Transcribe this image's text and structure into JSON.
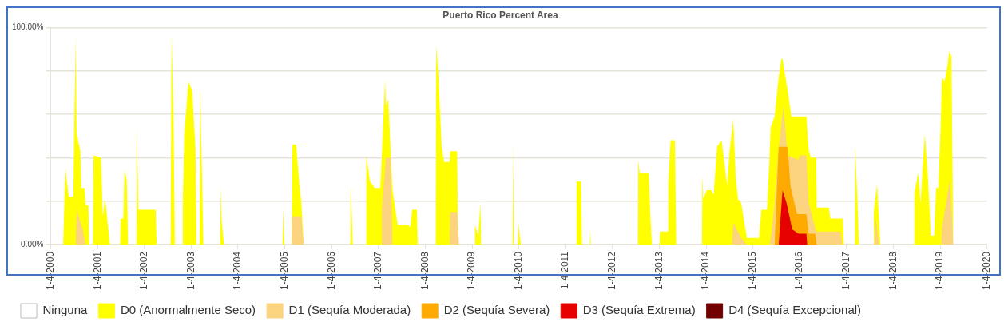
{
  "chart_data": {
    "type": "area",
    "title": "Puerto Rico Percent Area",
    "xlim": [
      "2000-01-04",
      "2020-01-04"
    ],
    "xticks": [
      {
        "value": "2000-01-04",
        "label": "1-4-2000"
      },
      {
        "value": "2001-01-04",
        "label": "1-4-2001"
      },
      {
        "value": "2002-01-04",
        "label": "1-4-2002"
      },
      {
        "value": "2003-01-04",
        "label": "1-4-2003"
      },
      {
        "value": "2004-01-04",
        "label": "1-4-2004"
      },
      {
        "value": "2005-01-04",
        "label": "1-4-2005"
      },
      {
        "value": "2006-01-04",
        "label": "1-4-2006"
      },
      {
        "value": "2007-01-04",
        "label": "1-4-2007"
      },
      {
        "value": "2008-01-04",
        "label": "1-4-2008"
      },
      {
        "value": "2009-01-04",
        "label": "1-4-2009"
      },
      {
        "value": "2010-01-04",
        "label": "1-4-2010"
      },
      {
        "value": "2011-01-04",
        "label": "1-4-2011"
      },
      {
        "value": "2012-01-04",
        "label": "1-4-2012"
      },
      {
        "value": "2013-01-04",
        "label": "1-4-2013"
      },
      {
        "value": "2014-01-04",
        "label": "1-4-2014"
      },
      {
        "value": "2015-01-04",
        "label": "1-4-2015"
      },
      {
        "value": "2016-01-04",
        "label": "1-4-2016"
      },
      {
        "value": "2017-01-04",
        "label": "1-4-2017"
      },
      {
        "value": "2018-01-04",
        "label": "1-4-2018"
      },
      {
        "value": "2019-01-04",
        "label": "1-4-2019"
      },
      {
        "value": "2020-01-04",
        "label": "1-4-2020"
      }
    ],
    "ylim": [
      0,
      100
    ],
    "yticks": [
      {
        "value": 0,
        "label": "0.00%"
      },
      {
        "value": 20,
        "label": null
      },
      {
        "value": 40,
        "label": null
      },
      {
        "value": 60,
        "label": null
      },
      {
        "value": 80,
        "label": null
      },
      {
        "value": 100,
        "label": "100.00%"
      }
    ],
    "grid": "y",
    "legend": "bottom",
    "series": [
      {
        "name": "Ninguna",
        "color": "#ffffff"
      },
      {
        "name": "D0 (Anormalmente Seco)",
        "color": "#ffff00",
        "x": [
          "2000-04-10",
          "2000-04-28",
          "2000-05-23",
          "2000-06-29",
          "2000-07-06",
          "2000-07-17",
          "2000-07-24",
          "2000-08-23",
          "2000-08-30",
          "2000-09-24",
          "2000-10-02",
          "2000-10-24",
          "2000-10-31",
          "2000-11-29",
          "2000-12-03",
          "2001-01-30",
          "2001-02-14",
          "2001-03-04",
          "2001-04-10",
          "2001-06-29",
          "2001-07-03",
          "2001-07-24",
          "2001-08-01",
          "2001-08-19",
          "2001-08-30",
          "2001-11-04",
          "2001-11-07",
          "2001-11-18",
          "2002-04-02",
          "2002-04-10",
          "2002-07-28",
          "2002-08-04",
          "2002-08-19",
          "2002-08-30",
          "2002-10-27",
          "2002-10-31",
          "2002-11-11",
          "2002-12-14",
          "2003-01-12",
          "2003-02-07",
          "2003-02-14",
          "2003-03-11",
          "2003-03-15",
          "2003-04-10",
          "2003-08-19",
          "2003-08-23",
          "2003-08-30",
          "2003-09-17",
          "2004-12-17",
          "2004-12-21",
          "2005-01-01",
          "2005-02-28",
          "2005-03-04",
          "2005-04-02",
          "2005-04-24",
          "2005-05-12",
          "2005-05-31",
          "2006-05-31",
          "2006-06-03",
          "2006-06-18",
          "2006-09-28",
          "2006-10-02",
          "2006-10-31",
          "2006-12-06",
          "2007-01-19",
          "2007-01-30",
          "2007-02-25",
          "2007-03-04",
          "2007-03-22",
          "2007-04-24",
          "2007-06-03",
          "2007-08-23",
          "2007-09-10",
          "2007-09-24",
          "2007-10-31",
          "2007-11-07",
          "2008-03-26",
          "2008-03-30",
          "2008-04-17",
          "2008-05-12",
          "2008-05-31",
          "2008-07-13",
          "2008-07-17",
          "2008-09-10",
          "2008-09-17",
          "2009-01-23",
          "2009-01-27",
          "2009-02-21",
          "2009-03-11",
          "2009-03-15",
          "2009-11-15",
          "2009-11-18",
          "2009-11-26",
          "2009-12-28",
          "2010-01-01",
          "2010-01-19",
          "2011-03-26",
          "2011-03-30",
          "2011-05-05",
          "2011-05-12",
          "2011-07-10",
          "2011-07-13",
          "2011-07-21",
          "2012-07-21",
          "2012-07-24",
          "2012-08-04",
          "2012-10-13",
          "2012-10-24",
          "2012-11-07",
          "2013-01-05",
          "2013-01-08",
          "2013-03-11",
          "2013-03-15",
          "2013-04-02",
          "2013-05-05",
          "2013-05-16",
          "2013-12-03",
          "2013-12-06",
          "2013-12-14",
          "2014-01-08",
          "2014-02-14",
          "2014-03-04",
          "2014-03-30",
          "2014-05-05",
          "2014-05-23",
          "2014-06-18",
          "2014-07-06",
          "2014-08-04",
          "2014-08-23",
          "2014-09-10",
          "2014-10-05",
          "2014-11-18",
          "2015-02-21",
          "2015-03-11",
          "2015-04-24",
          "2015-05-12",
          "2015-05-23",
          "2015-06-22",
          "2015-07-24",
          "2015-08-12",
          "2015-08-23",
          "2015-09-10",
          "2015-10-02",
          "2015-10-31",
          "2016-02-25",
          "2016-03-15",
          "2016-04-02",
          "2016-05-12",
          "2016-05-16",
          "2016-08-19",
          "2016-08-30",
          "2016-12-06",
          "2016-12-14",
          "2017-03-08",
          "2017-03-11",
          "2017-03-30",
          "2017-04-10",
          "2017-08-01",
          "2017-08-04",
          "2017-08-30",
          "2017-09-24",
          "2018-06-14",
          "2018-06-18",
          "2018-07-17",
          "2018-08-04",
          "2018-09-06",
          "2018-10-02",
          "2018-10-24",
          "2018-11-18",
          "2018-12-03",
          "2018-12-21",
          "2019-01-08",
          "2019-01-19",
          "2019-02-07",
          "2019-03-04",
          "2019-03-15",
          "2019-04-02",
          "2019-04-17"
        ],
        "values": [
          0,
          35,
          22,
          22,
          55,
          96,
          51,
          43,
          26,
          26,
          18,
          18,
          0,
          0,
          41,
          40,
          13,
          21,
          0,
          0,
          12,
          12,
          34,
          30,
          0,
          0,
          54,
          16,
          16,
          0,
          0,
          97,
          60,
          0,
          0,
          20,
          51,
          75,
          71,
          44,
          0,
          0,
          74,
          0,
          0,
          27,
          11,
          0,
          0,
          17,
          0,
          0,
          46,
          46,
          30,
          20,
          0,
          0,
          28,
          0,
          0,
          41,
          29,
          26,
          26,
          40,
          76,
          64,
          67,
          25,
          9,
          9,
          8,
          16,
          16,
          0,
          0,
          92,
          77,
          45,
          38,
          38,
          43,
          43,
          0,
          0,
          9,
          4,
          19,
          0,
          0,
          47,
          0,
          0,
          10,
          0,
          0,
          29,
          29,
          0,
          0,
          7,
          0,
          0,
          39,
          33,
          33,
          16,
          0,
          0,
          6,
          6,
          28,
          48,
          48,
          0,
          0,
          32,
          21,
          25,
          25,
          23,
          45,
          48,
          39,
          27,
          43,
          58,
          31,
          21,
          19,
          3,
          3,
          16,
          16,
          38,
          54,
          59,
          77,
          85,
          86,
          79,
          71,
          59,
          59,
          43,
          40,
          40,
          17,
          17,
          12,
          12,
          0,
          0,
          46,
          20,
          0,
          0,
          15,
          28,
          0,
          0,
          24,
          33,
          19,
          51,
          30,
          4,
          4,
          26,
          26,
          55,
          77,
          75,
          83,
          89,
          87,
          0
        ]
      },
      {
        "name": "D1 (Sequía Moderada)",
        "color": "#fcd37f",
        "x": [
          "2000-07-17",
          "2000-07-24",
          "2000-09-10",
          "2000-10-02",
          "2005-02-28",
          "2005-03-04",
          "2005-05-12",
          "2005-05-31",
          "2007-01-27",
          "2007-01-30",
          "2007-03-04",
          "2007-04-10",
          "2007-04-24",
          "2008-07-13",
          "2008-07-17",
          "2008-09-10",
          "2008-09-24",
          "2014-07-24",
          "2014-08-04",
          "2014-10-05",
          "2014-11-18",
          "2015-05-16",
          "2015-06-18",
          "2015-07-24",
          "2015-08-30",
          "2015-10-02",
          "2015-11-11",
          "2015-12-25",
          "2016-01-08",
          "2016-02-25",
          "2016-03-15",
          "2016-05-12",
          "2016-11-18",
          "2016-12-03",
          "2017-08-08",
          "2017-08-19",
          "2017-09-14",
          "2019-01-12",
          "2019-01-19",
          "2019-03-22",
          "2019-04-17"
        ],
        "values": [
          0,
          16,
          7,
          0,
          0,
          13,
          13,
          0,
          0,
          16,
          40,
          40,
          0,
          0,
          15,
          15,
          0,
          0,
          10,
          3,
          0,
          0,
          16,
          44,
          64,
          41,
          40,
          39,
          41,
          41,
          19,
          6,
          6,
          0,
          0,
          12,
          0,
          0,
          8,
          30,
          0
        ]
      },
      {
        "name": "D2 (Sequía Severa)",
        "color": "#ffaa00",
        "x": [
          "2015-06-22",
          "2015-07-24",
          "2015-10-02",
          "2015-10-24",
          "2015-12-14",
          "2016-02-25",
          "2016-03-15",
          "2016-05-05",
          "2016-05-16"
        ],
        "values": [
          0,
          45,
          45,
          27,
          14,
          14,
          5,
          5,
          0
        ]
      },
      {
        "name": "D3 (Sequía Extrema)",
        "color": "#e60000",
        "x": [
          "2015-07-24",
          "2015-08-23",
          "2015-09-24",
          "2015-11-07",
          "2015-12-25",
          "2016-02-25",
          "2016-03-04"
        ],
        "values": [
          0,
          25,
          19,
          7,
          5,
          5,
          0
        ]
      },
      {
        "name": "D4 (Sequía Excepcional)",
        "color": "#730000"
      }
    ]
  }
}
